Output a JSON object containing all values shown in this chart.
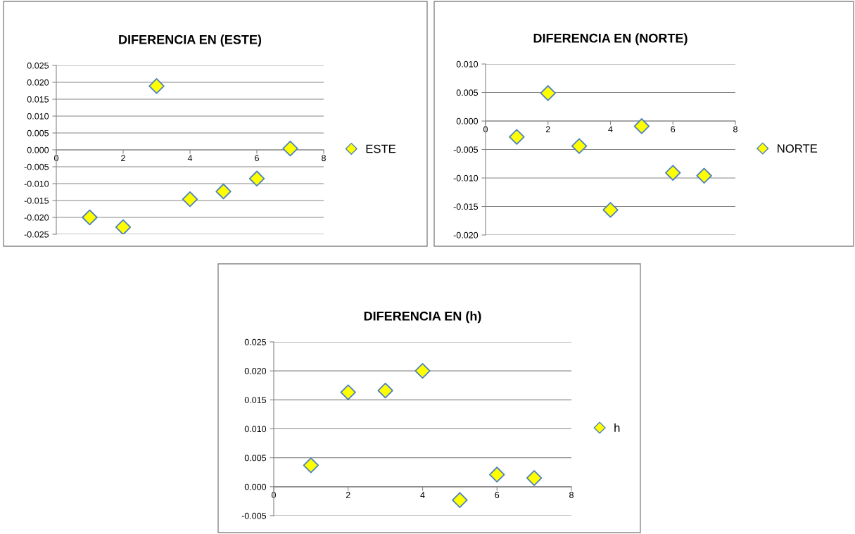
{
  "chart_data": [
    {
      "type": "scatter",
      "title": "DIFERENCIA EN (ESTE)",
      "x": [
        1,
        2,
        3,
        4,
        5,
        6,
        7
      ],
      "series": [
        {
          "name": "ESTE",
          "color": "#ffff00",
          "values": [
            -0.02,
            -0.0229,
            0.0189,
            -0.0146,
            -0.0123,
            -0.0085,
            0.0004
          ]
        }
      ],
      "xlim": [
        0,
        8
      ],
      "xticks": [
        0,
        2,
        4,
        6,
        8
      ],
      "ylim": [
        -0.025,
        0.025
      ],
      "yticks": [
        {
          "value": -0.025,
          "label": "-0.025"
        },
        {
          "value": -0.02,
          "label": "-0.020"
        },
        {
          "value": -0.015,
          "label": "-0.015"
        },
        {
          "value": -0.01,
          "label": "-0.010"
        },
        {
          "value": -0.005,
          "label": "-0.005"
        },
        {
          "value": 0,
          "label": "0.000"
        },
        {
          "value": 0.005,
          "label": "0.005"
        },
        {
          "value": 0.01,
          "label": "0.010"
        },
        {
          "value": 0.015,
          "label": "0.015"
        },
        {
          "value": 0.02,
          "label": "0.020"
        },
        {
          "value": 0.025,
          "label": "0.025"
        }
      ],
      "grid": "y",
      "legend": "right",
      "marker": "diamond"
    },
    {
      "type": "scatter",
      "title": "DIFERENCIA EN (NORTE)",
      "x": [
        1,
        2,
        3,
        4,
        5,
        6,
        7
      ],
      "series": [
        {
          "name": "NORTE",
          "color": "#ffff00",
          "values": [
            -0.0028,
            0.0049,
            -0.0044,
            -0.0156,
            -0.0009,
            -0.0091,
            -0.0096
          ]
        }
      ],
      "xlim": [
        0,
        8
      ],
      "xticks": [
        0,
        2,
        4,
        6,
        8
      ],
      "ylim": [
        -0.02,
        0.01
      ],
      "yticks": [
        {
          "value": -0.02,
          "label": "-0.020"
        },
        {
          "value": -0.015,
          "label": "-0.015"
        },
        {
          "value": -0.01,
          "label": "-0.010"
        },
        {
          "value": -0.005,
          "label": "-0.005"
        },
        {
          "value": 0,
          "label": "0.000"
        },
        {
          "value": 0.005,
          "label": "0.005"
        },
        {
          "value": 0.01,
          "label": "0.010"
        }
      ],
      "grid": "y",
      "legend": "right",
      "marker": "diamond"
    },
    {
      "type": "scatter",
      "title": "DIFERENCIA EN (h)",
      "x": [
        1,
        2,
        3,
        4,
        5,
        6,
        7
      ],
      "series": [
        {
          "name": "h",
          "color": "#ffff00",
          "values": [
            0.0037,
            0.0163,
            0.0166,
            0.02,
            -0.0023,
            0.0021,
            0.0015
          ]
        }
      ],
      "xlim": [
        0,
        8
      ],
      "xticks": [
        0,
        2,
        4,
        6,
        8
      ],
      "ylim": [
        -0.005,
        0.025
      ],
      "yticks": [
        {
          "value": -0.005,
          "label": "-0.005"
        },
        {
          "value": 0,
          "label": "0.000"
        },
        {
          "value": 0.005,
          "label": "0.005"
        },
        {
          "value": 0.01,
          "label": "0.010"
        },
        {
          "value": 0.015,
          "label": "0.015"
        },
        {
          "value": 0.02,
          "label": "0.020"
        },
        {
          "value": 0.025,
          "label": "0.025"
        }
      ],
      "grid": "y",
      "legend": "right",
      "marker": "diamond"
    }
  ]
}
